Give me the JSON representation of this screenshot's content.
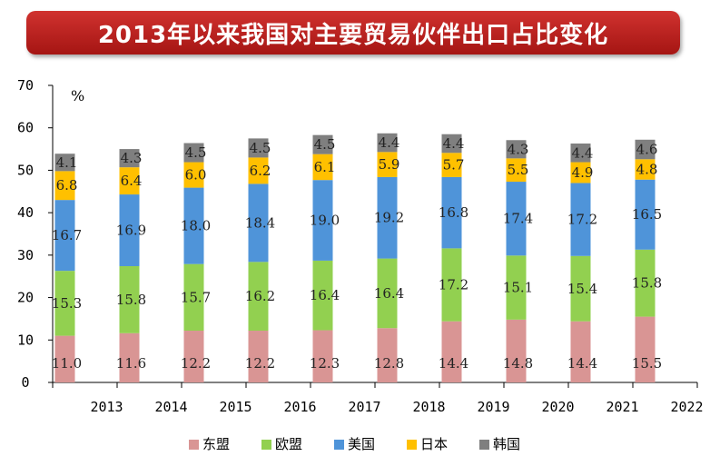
{
  "title": "2013年以来我国对主要贸易伙伴出口占比变化",
  "chart_data": {
    "type": "bar",
    "stacked": true,
    "unit": "%",
    "categories": [
      "2013",
      "2014",
      "2015",
      "2016",
      "2017",
      "2018",
      "2019",
      "2020",
      "2021",
      "2022"
    ],
    "ylim": [
      0,
      70
    ],
    "yticks": [
      0,
      10,
      20,
      30,
      40,
      50,
      60,
      70
    ],
    "series": [
      {
        "name": "东盟",
        "color": "#d99594",
        "values": [
          11.0,
          11.6,
          12.2,
          12.2,
          12.3,
          12.8,
          14.4,
          14.8,
          14.4,
          15.5
        ]
      },
      {
        "name": "欧盟",
        "color": "#92d050",
        "values": [
          15.3,
          15.8,
          15.7,
          16.2,
          16.4,
          16.4,
          17.2,
          15.1,
          15.4,
          15.8
        ]
      },
      {
        "name": "美国",
        "color": "#4f94d9",
        "values": [
          16.7,
          16.9,
          18.0,
          18.4,
          19.0,
          19.2,
          16.8,
          17.4,
          17.2,
          16.5
        ]
      },
      {
        "name": "日本",
        "color": "#ffc000",
        "values": [
          6.8,
          6.4,
          6.0,
          6.2,
          6.1,
          5.9,
          5.7,
          5.5,
          4.9,
          4.8
        ]
      },
      {
        "name": "韩国",
        "color": "#7f7f7f",
        "values": [
          4.1,
          4.3,
          4.5,
          4.5,
          4.5,
          4.4,
          4.4,
          4.3,
          4.4,
          4.6
        ]
      }
    ],
    "legend": "bottom"
  }
}
